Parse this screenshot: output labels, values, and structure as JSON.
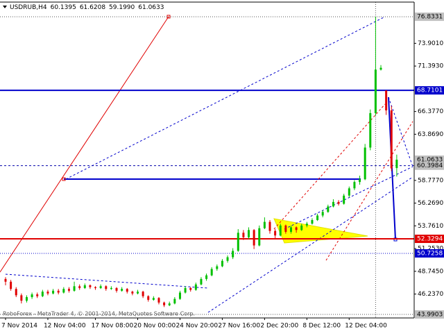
{
  "chart_data": {
    "type": "candlestick",
    "symbol": "USDRUB,H4",
    "header_labels": [
      "60.1395",
      "61.6208",
      "59.1990",
      "61.0633"
    ],
    "watermark": "RoboForex - MetaTrader 4, © 2001-2014, MetaQuotes Software Corp.",
    "up_color": "#00c000",
    "down_color": "#e00000",
    "ylim": [
      43.6,
      78.45
    ],
    "yticks": [
      {
        "value": 73.901,
        "label": "73.9010"
      },
      {
        "value": 71.393,
        "label": "71.3930"
      },
      {
        "value": 66.377,
        "label": "66.3770"
      },
      {
        "value": 63.869,
        "label": "63.8690"
      },
      {
        "value": 58.777,
        "label": "58.7770"
      },
      {
        "value": 56.269,
        "label": "56.2690"
      },
      {
        "value": 53.761,
        "label": "53.7610"
      },
      {
        "value": 51.253,
        "label": "51.2530"
      },
      {
        "value": 48.745,
        "label": "48.7450"
      },
      {
        "value": 46.237,
        "label": "46.2370"
      }
    ],
    "price_levels": [
      {
        "value": 76.8331,
        "label": "76.8331",
        "color": "#c0c0c0",
        "line": "dotted"
      },
      {
        "value": 68.7101,
        "label": "68.7101",
        "color": "#0000cc",
        "line": "solid"
      },
      {
        "value": 61.0633,
        "label": "61.0633",
        "color": "#c0c0c0",
        "line": "none"
      },
      {
        "value": 60.3984,
        "label": "60.3984",
        "color": "#c0c0c0",
        "line": "dashed"
      },
      {
        "value": 52.3294,
        "label": "52.3294",
        "color": "#e00000",
        "line": "solid"
      },
      {
        "value": 50.7258,
        "label": "50.7258",
        "color": "#0000cc",
        "line": "dotted"
      },
      {
        "value": 43.9903,
        "label": "43.9903",
        "color": "#c0c0c0",
        "line": "dotted"
      }
    ],
    "categories": [
      "7 Nov 2014",
      null,
      null,
      null,
      null,
      null,
      null,
      null,
      "12 Nov 04:00",
      null,
      null,
      null,
      null,
      null,
      null,
      null,
      null,
      "17 Nov 08:00",
      null,
      null,
      null,
      null,
      null,
      null,
      null,
      "20 Nov 00:00",
      null,
      null,
      null,
      null,
      null,
      null,
      null,
      "24 Nov 20:00",
      null,
      null,
      null,
      null,
      null,
      null,
      null,
      "27 Nov 16:00",
      null,
      null,
      null,
      null,
      null,
      null,
      null,
      "2 Dec 20:00",
      null,
      null,
      null,
      null,
      null,
      null,
      null,
      "8 Dec 12:00",
      null,
      null,
      null,
      null,
      null,
      null,
      null,
      "12 Dec 04:00",
      null,
      null,
      null,
      null,
      null,
      null,
      null,
      null,
      null
    ],
    "ohlc": [
      [
        47.9,
        48.1,
        47.2,
        47.6
      ],
      [
        47.6,
        47.8,
        46.6,
        46.8
      ],
      [
        46.8,
        47.0,
        45.9,
        46.1
      ],
      [
        46.1,
        46.3,
        45.2,
        45.5
      ],
      [
        45.5,
        46.1,
        45.3,
        45.9
      ],
      [
        45.9,
        46.4,
        45.7,
        46.2
      ],
      [
        46.2,
        46.4,
        45.8,
        46.0
      ],
      [
        46.0,
        46.7,
        45.9,
        46.5
      ],
      [
        46.5,
        46.7,
        46.1,
        46.3
      ],
      [
        46.3,
        46.8,
        46.2,
        46.6
      ],
      [
        46.6,
        46.8,
        46.2,
        46.4
      ],
      [
        46.4,
        47.0,
        46.3,
        46.8
      ],
      [
        46.8,
        47.0,
        46.4,
        46.6
      ],
      [
        46.6,
        47.6,
        46.5,
        47.1
      ],
      [
        47.1,
        47.3,
        46.7,
        46.9
      ],
      [
        46.9,
        47.4,
        46.8,
        47.2
      ],
      [
        47.2,
        47.3,
        46.8,
        47.0
      ],
      [
        47.0,
        47.1,
        46.7,
        46.9
      ],
      [
        46.9,
        47.3,
        46.8,
        47.1
      ],
      [
        47.1,
        47.2,
        46.6,
        46.8
      ],
      [
        46.8,
        47.1,
        46.7,
        46.9
      ],
      [
        46.9,
        47.0,
        46.4,
        46.6
      ],
      [
        46.6,
        47.0,
        46.5,
        46.8
      ],
      [
        46.8,
        46.9,
        46.3,
        46.5
      ],
      [
        46.5,
        46.6,
        46.1,
        46.3
      ],
      [
        46.3,
        46.7,
        46.2,
        46.5
      ],
      [
        46.5,
        46.6,
        45.8,
        46.0
      ],
      [
        46.0,
        46.1,
        45.4,
        45.6
      ],
      [
        45.6,
        46.0,
        45.5,
        45.8
      ],
      [
        45.8,
        45.9,
        45.1,
        45.3
      ],
      [
        45.3,
        45.4,
        44.8,
        45.0
      ],
      [
        45.0,
        45.4,
        44.9,
        45.2
      ],
      [
        45.2,
        45.9,
        45.1,
        45.7
      ],
      [
        45.7,
        46.6,
        45.6,
        46.4
      ],
      [
        46.4,
        47.1,
        46.3,
        46.9
      ],
      [
        46.9,
        47.0,
        46.5,
        46.7
      ],
      [
        46.7,
        47.5,
        46.6,
        47.3
      ],
      [
        47.3,
        48.1,
        47.2,
        47.9
      ],
      [
        47.9,
        48.5,
        47.7,
        48.3
      ],
      [
        48.3,
        49.2,
        48.2,
        49.0
      ],
      [
        49.0,
        49.5,
        48.8,
        49.3
      ],
      [
        49.3,
        50.1,
        49.2,
        49.9
      ],
      [
        49.9,
        50.5,
        49.7,
        50.3
      ],
      [
        50.3,
        51.3,
        50.1,
        51.0
      ],
      [
        51.0,
        53.4,
        50.9,
        53.0
      ],
      [
        53.0,
        53.3,
        52.2,
        52.5
      ],
      [
        52.5,
        53.6,
        52.3,
        53.3
      ],
      [
        53.3,
        53.4,
        51.2,
        51.6
      ],
      [
        51.6,
        53.8,
        51.5,
        53.5
      ],
      [
        53.5,
        54.7,
        53.4,
        54.2
      ],
      [
        54.2,
        54.4,
        52.9,
        53.2
      ],
      [
        53.2,
        53.4,
        52.4,
        52.7
      ],
      [
        52.7,
        54.0,
        52.6,
        53.8
      ],
      [
        53.8,
        53.9,
        52.9,
        53.1
      ],
      [
        53.1,
        53.8,
        52.9,
        53.6
      ],
      [
        53.6,
        53.7,
        53.0,
        53.3
      ],
      [
        53.3,
        54.0,
        53.2,
        53.8
      ],
      [
        53.8,
        54.2,
        53.6,
        54.0
      ],
      [
        54.0,
        54.6,
        53.9,
        54.4
      ],
      [
        54.4,
        55.1,
        54.3,
        54.9
      ],
      [
        54.9,
        55.5,
        54.7,
        55.3
      ],
      [
        55.3,
        56.1,
        55.2,
        55.9
      ],
      [
        55.9,
        56.7,
        55.8,
        56.4
      ],
      [
        56.4,
        56.6,
        56.0,
        56.2
      ],
      [
        56.2,
        57.3,
        56.1,
        57.1
      ],
      [
        57.1,
        58.1,
        56.9,
        57.9
      ],
      [
        57.9,
        58.8,
        57.7,
        58.6
      ],
      [
        58.6,
        59.3,
        58.3,
        58.9
      ],
      [
        58.9,
        62.8,
        58.8,
        62.4
      ],
      [
        62.4,
        66.6,
        62.1,
        66.2
      ],
      [
        66.2,
        76.8331,
        65.9,
        71.0
      ],
      [
        71.0,
        71.5,
        70.9,
        71.2
      ],
      [
        68.7,
        68.7,
        66.0,
        66.5
      ],
      [
        66.5,
        67.0,
        59.8,
        60.1
      ],
      [
        60.1395,
        61.6208,
        59.199,
        61.0633
      ]
    ]
  }
}
